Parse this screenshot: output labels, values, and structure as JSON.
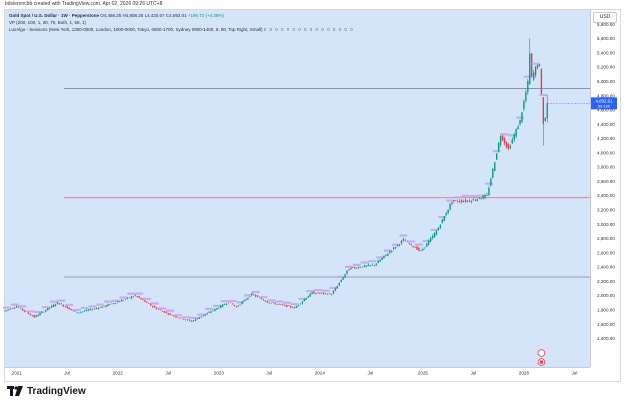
{
  "top_note": "bdsleroncbb created with TradingView.com, Apr 02, 2026 09:26 UTC+8",
  "legend": {
    "symbol_line": "Gold Spot / U.S. Dollar · 1W · Pepperstone",
    "ohlc": "O4,486.25 H4,808.25 L4,420.07 C4,692.01",
    "change": "+196.72 (+4.38%)",
    "vp_line": "VP (200, 100, 1, 30, 70, Both, 1, 68, 1)",
    "luxalgo_line": "LuxAlgo - Sessions (New York, 1300-0000, London, 1000-0000, Tokyo, 0800-1700, Sydney 0900-1400, 8, 90, Top Right, Small)",
    "dots": "0 0 0 0 0 0 0 0 0 0 0 0 0 0 0 0"
  },
  "currency_button": "USD",
  "brand": "TradingView",
  "colors": {
    "up": "#089981",
    "down": "#f23645",
    "background": "#d5e5f9",
    "level_dark": "#7f8a99",
    "level_red": "#d76a6a",
    "price_tag": "#2962ff",
    "session_label": "#c2a6f2"
  },
  "chart_data": {
    "type": "candlestick",
    "timeframe": "1W",
    "ylim": [
      1000,
      6000
    ],
    "y_ticks": [
      1400,
      1600,
      1800,
      2000,
      2200,
      2400,
      2600,
      2800,
      3000,
      3200,
      3400,
      3600,
      3800,
      4000,
      4200,
      4400,
      4600,
      4800,
      5000,
      5200,
      5400,
      5600,
      5800
    ],
    "y_tick_labels": [
      "1,400.00",
      "1,600.00",
      "1,800.00",
      "2,000.00",
      "2,200.00",
      "2,400.00",
      "2,600.00",
      "2,800.00",
      "3,000.00",
      "3,200.00",
      "3,400.00",
      "3,600.00",
      "3,800.00",
      "4,000.00",
      "4,200.00",
      "4,400.00",
      "4,600.00",
      "4,800.00",
      "5,000.00",
      "5,200.00",
      "5,400.00",
      "5,600.00",
      "5,800.00"
    ],
    "xlim": [
      "2020-11-23",
      "2026-08-31"
    ],
    "x_ticks": [
      {
        "date": "2021-01-04",
        "label": "2021"
      },
      {
        "date": "2021-07-05",
        "label": "Jul"
      },
      {
        "date": "2022-01-03",
        "label": "2022"
      },
      {
        "date": "2022-07-04",
        "label": "Jul"
      },
      {
        "date": "2023-01-02",
        "label": "2023"
      },
      {
        "date": "2023-07-03",
        "label": "Jul"
      },
      {
        "date": "2024-01-01",
        "label": "2024"
      },
      {
        "date": "2024-07-01",
        "label": "Jul"
      },
      {
        "date": "2025-01-06",
        "label": "2025"
      },
      {
        "date": "2025-07-07",
        "label": "Jul"
      },
      {
        "date": "2026-01-05",
        "label": "2026"
      },
      {
        "date": "2026-07-06",
        "label": "Jul"
      }
    ],
    "anchors": [
      [
        "2020-11-23",
        1790
      ],
      [
        "2021-01-04",
        1850
      ],
      [
        "2021-03-08",
        1700
      ],
      [
        "2021-05-31",
        1900
      ],
      [
        "2021-08-09",
        1760
      ],
      [
        "2021-11-15",
        1850
      ],
      [
        "2022-03-07",
        2000
      ],
      [
        "2022-05-16",
        1830
      ],
      [
        "2022-07-18",
        1720
      ],
      [
        "2022-09-26",
        1640
      ],
      [
        "2022-11-21",
        1750
      ],
      [
        "2023-02-06",
        1910
      ],
      [
        "2023-03-06",
        1840
      ],
      [
        "2023-05-01",
        2020
      ],
      [
        "2023-06-26",
        1910
      ],
      [
        "2023-10-02",
        1830
      ],
      [
        "2023-12-04",
        2040
      ],
      [
        "2024-02-12",
        2020
      ],
      [
        "2024-04-15",
        2380
      ],
      [
        "2024-07-15",
        2430
      ],
      [
        "2024-10-28",
        2780
      ],
      [
        "2024-12-30",
        2620
      ],
      [
        "2025-02-24",
        2900
      ],
      [
        "2025-04-21",
        3320
      ],
      [
        "2025-06-30",
        3330
      ],
      [
        "2025-08-25",
        3400
      ],
      [
        "2025-10-13",
        4250
      ],
      [
        "2025-11-10",
        4050
      ],
      [
        "2025-12-22",
        4450
      ],
      [
        "2026-01-19",
        4980
      ],
      [
        "2026-01-26",
        5380
      ],
      [
        "2026-02-02",
        5050
      ],
      [
        "2026-02-23",
        5250
      ],
      [
        "2026-03-02",
        5190
      ],
      [
        "2026-03-16",
        4420
      ],
      [
        "2026-03-23",
        4486
      ],
      [
        "2026-03-30",
        4692
      ]
    ],
    "last_candle": {
      "date": "2026-03-30",
      "open": 4486.25,
      "high": 4808.25,
      "low": 4420.07,
      "close": 4692.01
    },
    "spike_highs": [
      [
        "2026-01-26",
        5600
      ]
    ],
    "spike_lows": [
      [
        "2026-03-16",
        4100
      ]
    ],
    "horizontal_levels": [
      {
        "price": 4900,
        "style": "dark"
      },
      {
        "price": 3370,
        "style": "red"
      },
      {
        "price": 2260,
        "style": "dark"
      }
    ],
    "price_tag": {
      "value": "4,692.01",
      "countdown": "5d 10h"
    }
  }
}
